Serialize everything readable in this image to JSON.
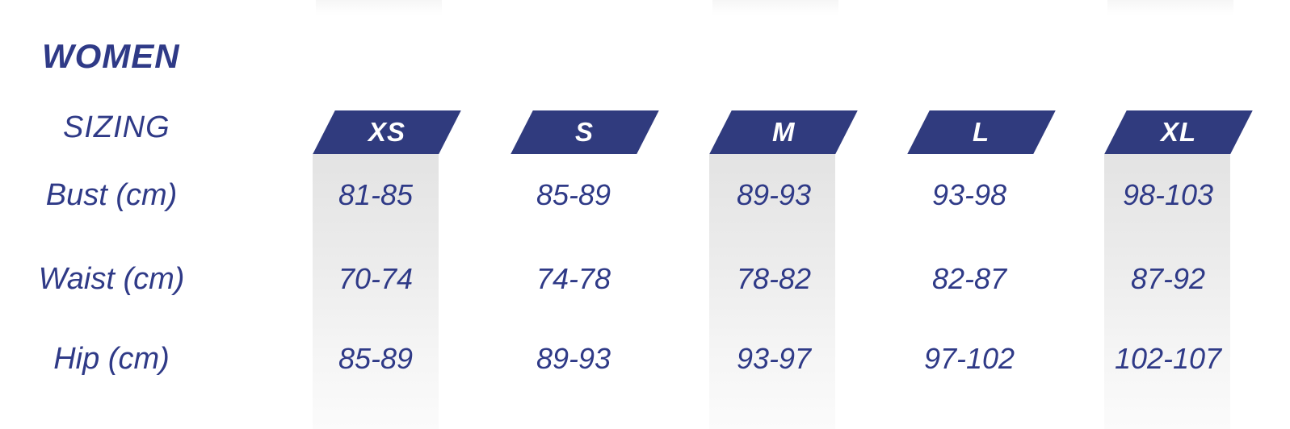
{
  "colors": {
    "accent_blue": "#303b7e",
    "text_blue": "#2f3a87",
    "shaded_column_gray": "#e3e3e3",
    "header_text": "#ffffff",
    "background": "#ffffff"
  },
  "chart_data": {
    "type": "table",
    "title": "WOMEN",
    "subtitle": "SIZING",
    "columns": [
      "XS",
      "S",
      "M",
      "L",
      "XL"
    ],
    "rows": [
      {
        "label": "Bust (cm)",
        "values": [
          "81-85",
          "85-89",
          "89-93",
          "93-98",
          "98-103"
        ]
      },
      {
        "label": "Waist (cm)",
        "values": [
          "70-74",
          "74-78",
          "78-82",
          "82-87",
          "87-92"
        ]
      },
      {
        "label": "Hip (cm)",
        "values": [
          "85-89",
          "89-93",
          "93-97",
          "97-102",
          "102-107"
        ]
      }
    ],
    "shaded_columns": [
      "XS",
      "M",
      "XL"
    ],
    "units": "cm",
    "layout": {
      "header_shape": "parallelogram",
      "grid": "off",
      "legend": "none"
    }
  }
}
